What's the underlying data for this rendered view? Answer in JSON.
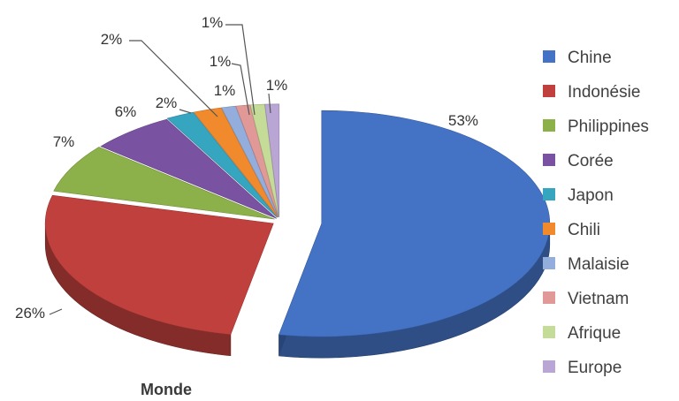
{
  "chart_data": {
    "type": "pie",
    "title": "Monde",
    "legend_position": "right",
    "slices": [
      {
        "label": "Chine",
        "value": 53,
        "value_label": "53%",
        "color": "#4472C4"
      },
      {
        "label": "Indonésie",
        "value": 26,
        "value_label": "26%",
        "color": "#C0403D"
      },
      {
        "label": "Philippines",
        "value": 7,
        "value_label": "7%",
        "color": "#8CB04A"
      },
      {
        "label": "Corée",
        "value": 6,
        "value_label": "6%",
        "color": "#7A52A2"
      },
      {
        "label": "Japon",
        "value": 2,
        "value_label": "2%",
        "color": "#35A5C0"
      },
      {
        "label": "Chili",
        "value": 2,
        "value_label": "2%",
        "color": "#F08A2C"
      },
      {
        "label": "Malaisie",
        "value": 1,
        "value_label": "1%",
        "color": "#93AEDD"
      },
      {
        "label": "Vietnam",
        "value": 1,
        "value_label": "1%",
        "color": "#E09996"
      },
      {
        "label": "Afrique",
        "value": 1,
        "value_label": "1%",
        "color": "#C4DC97"
      },
      {
        "label": "Europe",
        "value": 1,
        "value_label": "1%",
        "color": "#B9A6D4"
      }
    ]
  }
}
